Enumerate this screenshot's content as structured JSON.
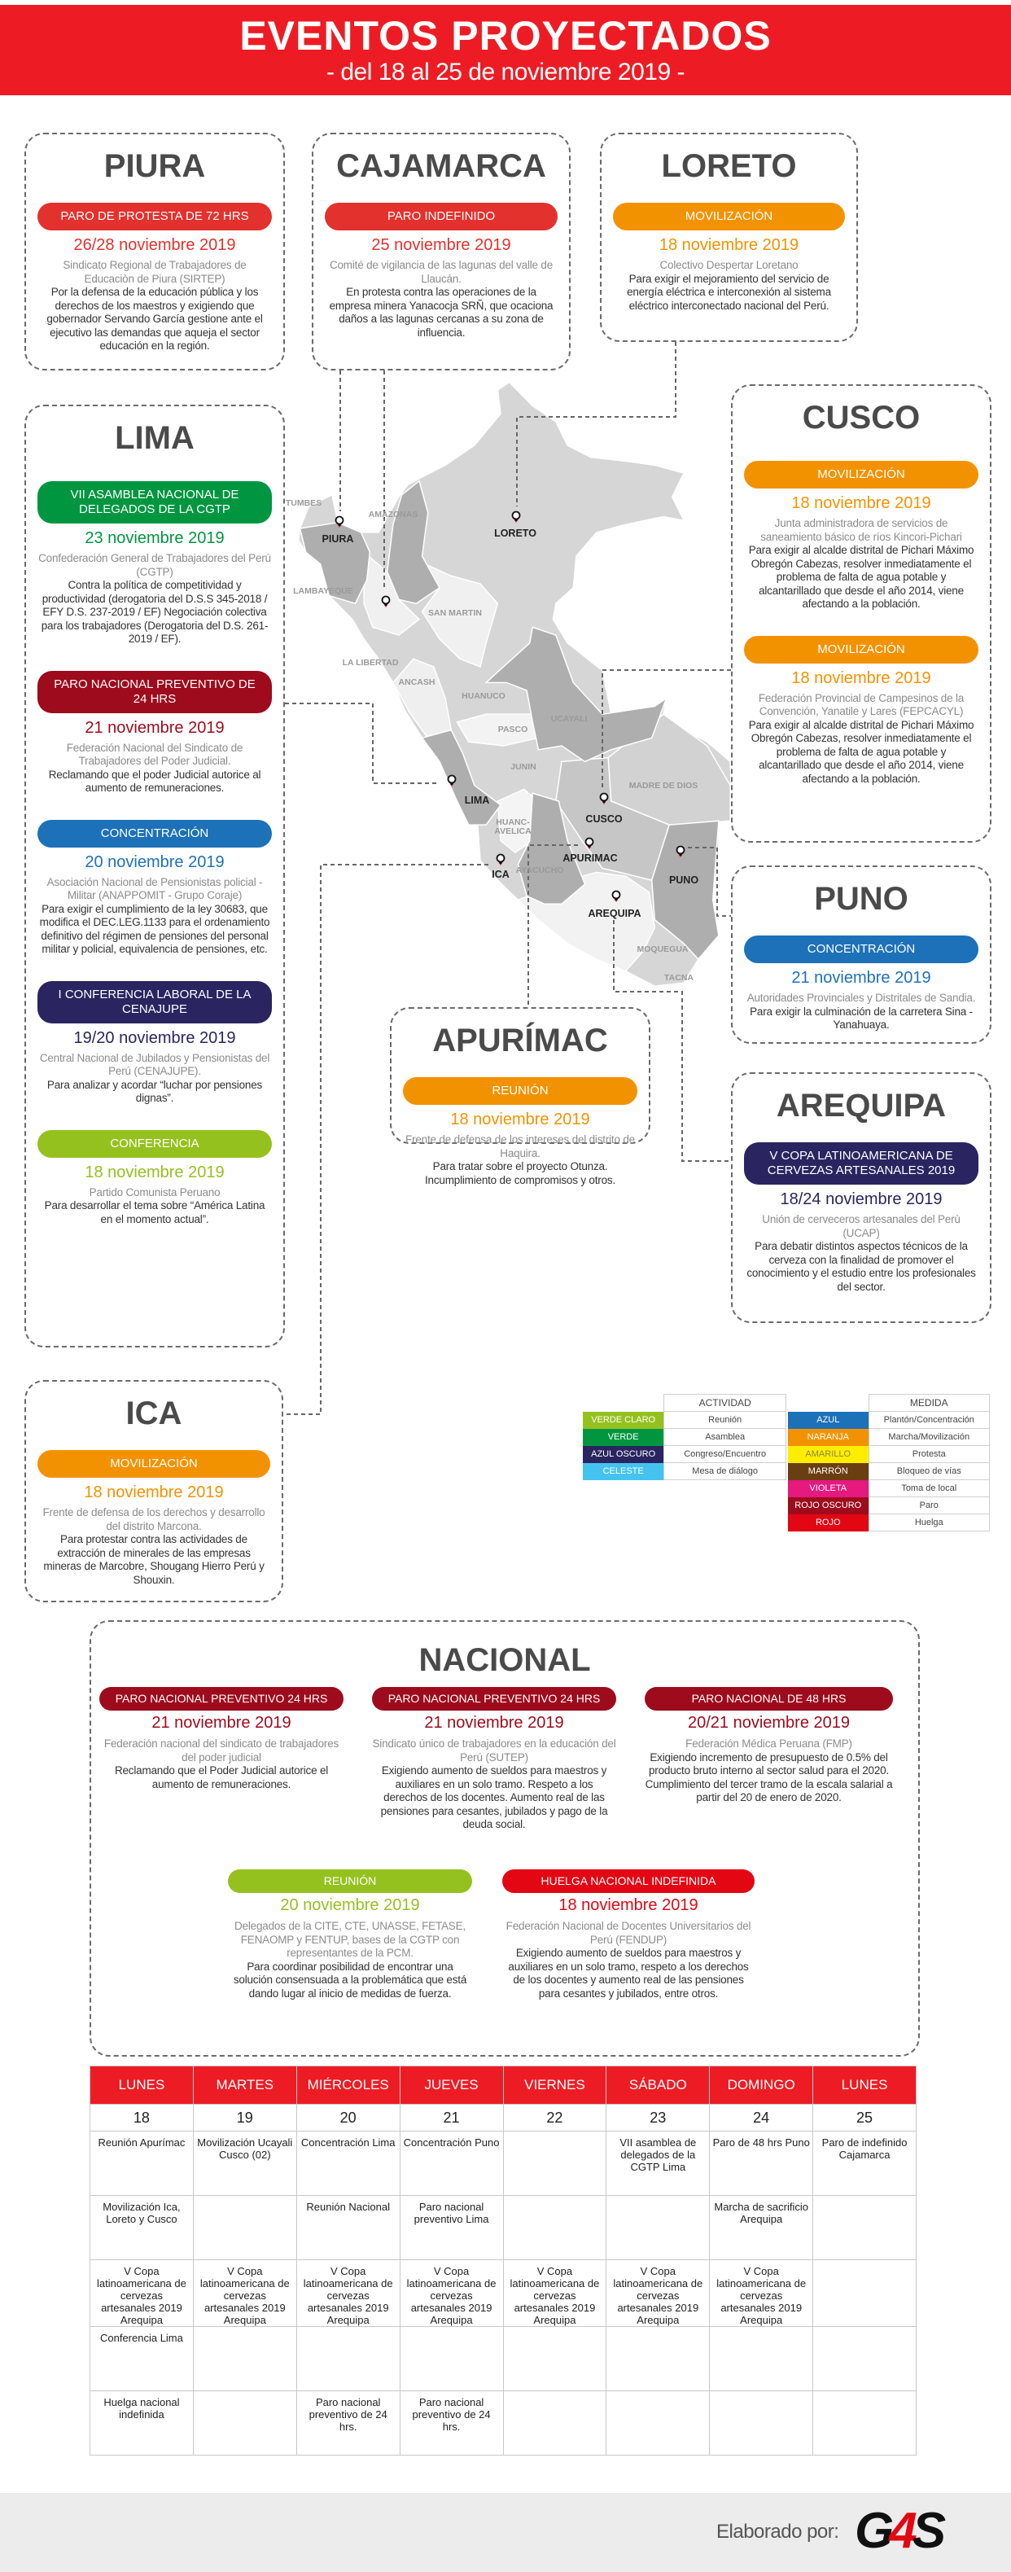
{
  "header": {
    "title": "EVENTOS PROYECTADOS",
    "subtitle": "- del 18 al 25 de noviembre 2019 -"
  },
  "regions": {
    "piura": {
      "name": "PIURA",
      "events": [
        {
          "label": "PARO DE PROTESTA DE 72 HRS",
          "color": "#e3312d",
          "date": "26/28 noviembre 2019",
          "org": "Sindicato Regional de Trabajadores de Educaciòn de Piura (SIRTEP)",
          "desc": "Por la defensa de la educación pública y los derechos de los maestros y exigiendo que gobernador Servando García gestione ante el ejecutivo las demandas que aqueja el sector educación en la región."
        }
      ]
    },
    "cajamarca": {
      "name": "CAJAMARCA",
      "events": [
        {
          "label": "PARO INDEFINIDO",
          "color": "#e3312d",
          "date": "25 noviembre 2019",
          "org": "Comité de vigilancia de las lagunas del valle de Llaucán.",
          "desc": "En protesta contra las operaciones de la empresa minera Yanacocja SRÑ, que ocaciona daños a las lagunas cercanas a su zona de influencia."
        }
      ]
    },
    "loreto": {
      "name": "LORETO",
      "events": [
        {
          "label": "MOVILIZACIÓN",
          "color": "#f39200",
          "date": "18 noviembre 2019",
          "org": "Colectivo Despertar Loretano",
          "desc": "Para exigir el mejoramiento del servicio de energía eléctrica e interconexión al sistema eléctrico interconectado nacional del Perú."
        }
      ]
    },
    "lima": {
      "name": "LIMA",
      "events": [
        {
          "label": "VII ASAMBLEA NACIONAL DE DELEGADOS DE LA CGTP",
          "color": "#009640",
          "date": "23 noviembre 2019",
          "org": "Confederación General de Trabajadores del Perú (CGTP)",
          "desc": "Contra la política de competitividad y productividad (derogatoria del D.S.S 345-2018 / EFY D.S. 237-2019 / EF) Negociación colectiva para los trabajadores (Derogatoria del D.S. 261-2019 / EF)."
        },
        {
          "label": "PARO NACIONAL PREVENTIVO DE 24 HRS",
          "color": "#9d0b1c",
          "date": "21 noviembre 2019",
          "org": "Federación Nacional del Sindicato de Trabajadores del Poder Judicial.",
          "desc": "Reclamando que el poder Judicial autorice al aumento de remuneraciones."
        },
        {
          "label": "CONCENTRACIÓN",
          "color": "#1d71b8",
          "date": "20 noviembre 2019",
          "org": "Asociación Nacional de Pensionistas policial - Militar (ANAPPOMIT - Grupo Coraje)",
          "desc": "Para exigir el cumplimiento de la ley 30683, que modifica el DEC.LEG.1133 para el ordenamiento definitivo del régimen de pensiones del personal militar y policial, equivalencia de pensiones, etc."
        },
        {
          "label": "I CONFERENCIA LABORAL DE LA CENAJUPE",
          "color": "#2a2560",
          "date": "19/20 noviembre 2019",
          "org": "Central Nacional de Jubilados y Pensionistas del Perú (CENAJUPE).",
          "desc": "Para analizar y acordar “luchar por pensiones dignas”."
        },
        {
          "label": "CONFERENCIA",
          "color": "#95c11f",
          "date": "18 noviembre 2019",
          "org": "Partido Comunista Peruano",
          "desc": "Para desarrollar el tema sobre “América Latina en el momento actual”."
        }
      ]
    },
    "cusco": {
      "name": "CUSCO",
      "events": [
        {
          "label": "MOVILIZACIÓN",
          "color": "#f39200",
          "date": "18 noviembre 2019",
          "org": "Junta administradora de servicios de saneamiento básico de ríos Kincori-Pichari",
          "desc": "Para exigir al alcalde distrital de Pichari Máximo Obregón Cabezas, resolver inmediatamente el problema de falta de agua potable y alcantarillado que desde el año 2014, viene afectando a la población."
        },
        {
          "label": "MOVILIZACIÓN",
          "color": "#f39200",
          "date": "18 noviembre 2019",
          "org": "Federación Provincial de Campesinos de la Convención, Yanatile y Lares (FEPCACYL)",
          "desc": "Para exigir al alcalde distrital de Pichari Máximo Obregón Cabezas, resolver inmediatamente el problema de falta de agua potable y alcantarillado que desde el año 2014, viene afectando a la población."
        }
      ]
    },
    "puno": {
      "name": "PUNO",
      "events": [
        {
          "label": "CONCENTRACIÓN",
          "color": "#1d71b8",
          "date": "21 noviembre 2019",
          "org": "Autoridades Provinciales y Distritales de Sandia.",
          "desc": "Para exigir la culminación de la carretera Sina - Yanahuaya."
        }
      ]
    },
    "arequipa": {
      "name": "AREQUIPA",
      "events": [
        {
          "label": "V COPA LATINOAMERICANA DE CERVEZAS ARTESANALES 2019",
          "color": "#2a2560",
          "date": "18/24 noviembre 2019",
          "org": "Unión de cerveceros artesanales del Perù (UCAP)",
          "desc": "Para debatir distintos aspectos técnicos de la cerveza con la finalidad de promover el conocimiento y el estudio entre los profesionales del sector."
        }
      ]
    },
    "apurimac": {
      "name": "APURÍMAC",
      "events": [
        {
          "label": "REUNIÓN",
          "color": "#f39200",
          "date": "18 noviembre 2019",
          "org": "Frente de defensa de los intereses del distrito de Haquira.",
          "desc": "Para tratar sobre el proyecto Otunza. Incumplimiento de compromisos y otros."
        }
      ]
    },
    "ica": {
      "name": "ICA",
      "events": [
        {
          "label": "MOVILIZACIÓN",
          "color": "#f39200",
          "date": "18 noviembre 2019",
          "org": "Frente de defensa de los derechos y desarrollo del distrito Marcona.",
          "desc": "Para protestar contra las actividades de extracción de minerales de las empresas mineras de Marcobre, Shougang Hierro Perú y Shouxin."
        }
      ]
    }
  },
  "map": {
    "departments": [
      "TUMBES",
      "AMAZONAS",
      "LAMBAYEQUE",
      "SAN MARTIN",
      "LA LIBERTAD",
      "ANCASH",
      "HUANUCO",
      "PASCO",
      "UCAYALI",
      "JUNIN",
      "MADRE DE DIOS",
      "HUANC-",
      "AVELICA",
      "AYACUCHO",
      "MOQUEGUA",
      "TACNA"
    ],
    "marked": [
      "PIURA",
      "LORETO",
      "LIMA",
      "CUSCO",
      "APURIMAC",
      "ICA",
      "AREQUIPA",
      "PUNO"
    ]
  },
  "legend": {
    "activity": {
      "header": "ACTIVIDAD",
      "rows": [
        {
          "color_name": "VERDE CLARO",
          "meaning": "Reunión",
          "color": "#95c11f"
        },
        {
          "color_name": "VERDE",
          "meaning": "Asamblea",
          "color": "#009640"
        },
        {
          "color_name": "AZUL OSCURO",
          "meaning": "Congreso/Encuentro",
          "color": "#2a2560"
        },
        {
          "color_name": "CELESTE",
          "meaning": "Mesa de diálogo",
          "color": "#45c3f0"
        }
      ]
    },
    "measure": {
      "header": "MEDIDA",
      "rows": [
        {
          "color_name": "AZUL",
          "meaning": "Plantón/Concentración",
          "color": "#1d71b8"
        },
        {
          "color_name": "NARANJA",
          "meaning": "Marcha/Movilización",
          "color": "#f39200"
        },
        {
          "color_name": "AMARILLO",
          "meaning": "Protesta",
          "color": "#ffed00"
        },
        {
          "color_name": "MARRÓN",
          "meaning": "Bloqueo de vías",
          "color": "#6b3e12"
        },
        {
          "color_name": "VIOLETA",
          "meaning": "Toma de local",
          "color": "#e6197f"
        },
        {
          "color_name": "ROJO OSCURO",
          "meaning": "Paro",
          "color": "#9d0b1c"
        },
        {
          "color_name": "ROJO",
          "meaning": "Huelga",
          "color": "#e30613"
        }
      ]
    }
  },
  "nacional": {
    "title": "NACIONAL",
    "events": [
      {
        "label": "PARO NACIONAL PREVENTIVO 24 HRS",
        "color": "#9d0b1c",
        "date": "21 noviembre 2019",
        "org": "Federación nacional del sindicato de trabajadores del poder judicial",
        "desc": "Reclamando que el Poder Judicial autorice el aumento de remuneraciones."
      },
      {
        "label": "PARO NACIONAL PREVENTIVO 24 HRS",
        "color": "#9d0b1c",
        "date": "21 noviembre 2019",
        "org": "Sindicato único de trabajadores en la educación del Perú (SUTEP)",
        "desc": "Exigiendo aumento de sueldos para maestros y auxiliares en un solo tramo. Respeto a los derechos de los docentes. Aumento real de las pensiones para cesantes, jubilados y pago de la deuda social."
      },
      {
        "label": "PARO NACIONAL DE 48 HRS",
        "color": "#9d0b1c",
        "date": "20/21 noviembre 2019",
        "org": "Federación Médica Peruana (FMP)",
        "desc": "Exigiendo incremento de presupuesto de 0.5% del producto bruto interno al sector salud para el 2020. Cumplimiento del tercer tramo de la escala salarial a partir del 20 de enero de 2020."
      },
      {
        "label": "REUNIÓN",
        "color": "#95c11f",
        "date": "20 noviembre 2019",
        "org": "Delegados de la CITE, CTE, UNASSE, FETASE, FENAOMP y FENTUP, bases de la CGTP con representantes de la PCM.",
        "desc": "Para coordinar posibilidad de encontrar una solución consensuada a la problemática que está dando lugar al inicio de medidas de fuerza."
      },
      {
        "label": "HUELGA NACIONAL INDEFINIDA",
        "color": "#e30613",
        "date": "18 noviembre 2019",
        "org": "Federación Nacional de Docentes Universitarios del Perú (FENDUP)",
        "desc": "Exigiendo aumento de sueldos para maestros y auxiliares en un solo tramo, respeto a los derechos de los docentes y aumento real de las pensiones para cesantes y jubilados, entre otros."
      }
    ]
  },
  "calendar": {
    "days": [
      "LUNES",
      "MARTES",
      "MIÉRCOLES",
      "JUEVES",
      "VIERNES",
      "SÁBADO",
      "DOMINGO",
      "LUNES"
    ],
    "dates": [
      "18",
      "19",
      "20",
      "21",
      "22",
      "23",
      "24",
      "25"
    ],
    "rows": [
      [
        "Reunión Apurímac",
        "Movilización Ucayali Cusco (02)",
        "Concentración Lima",
        "Concentración Puno",
        "",
        "VII asamblea de delegados de la CGTP Lima",
        "Paro de 48 hrs Puno",
        "Paro de indefinido Cajamarca"
      ],
      [
        "Movilización Ica, Loreto y Cusco",
        "",
        "Reunión Nacional",
        "Paro nacional preventivo Lima",
        "",
        "",
        "Marcha de sacrificio Arequipa",
        ""
      ],
      [
        "V Copa latinoamericana de cervezas artesanales 2019 Arequipa",
        "V Copa latinoamericana de cervezas artesanales 2019 Arequipa",
        "V Copa latinoamericana de cervezas artesanales 2019 Arequipa",
        "V Copa latinoamericana de cervezas artesanales 2019 Arequipa",
        "V Copa latinoamericana de cervezas artesanales 2019 Arequipa",
        "V Copa latinoamericana de cervezas artesanales 2019 Arequipa",
        "V Copa latinoamericana de cervezas artesanales 2019 Arequipa",
        ""
      ],
      [
        "Conferencia Lima",
        "",
        "",
        "",
        "",
        "",
        "",
        ""
      ],
      [
        "Huelga nacional indefinida",
        "",
        "Paro nacional preventivo de 24 hrs.",
        "Paro nacional preventivo de 24 hrs.",
        "",
        "",
        "",
        ""
      ]
    ]
  },
  "footer": {
    "credit": "Elaborado por:",
    "logo": "G4S"
  }
}
